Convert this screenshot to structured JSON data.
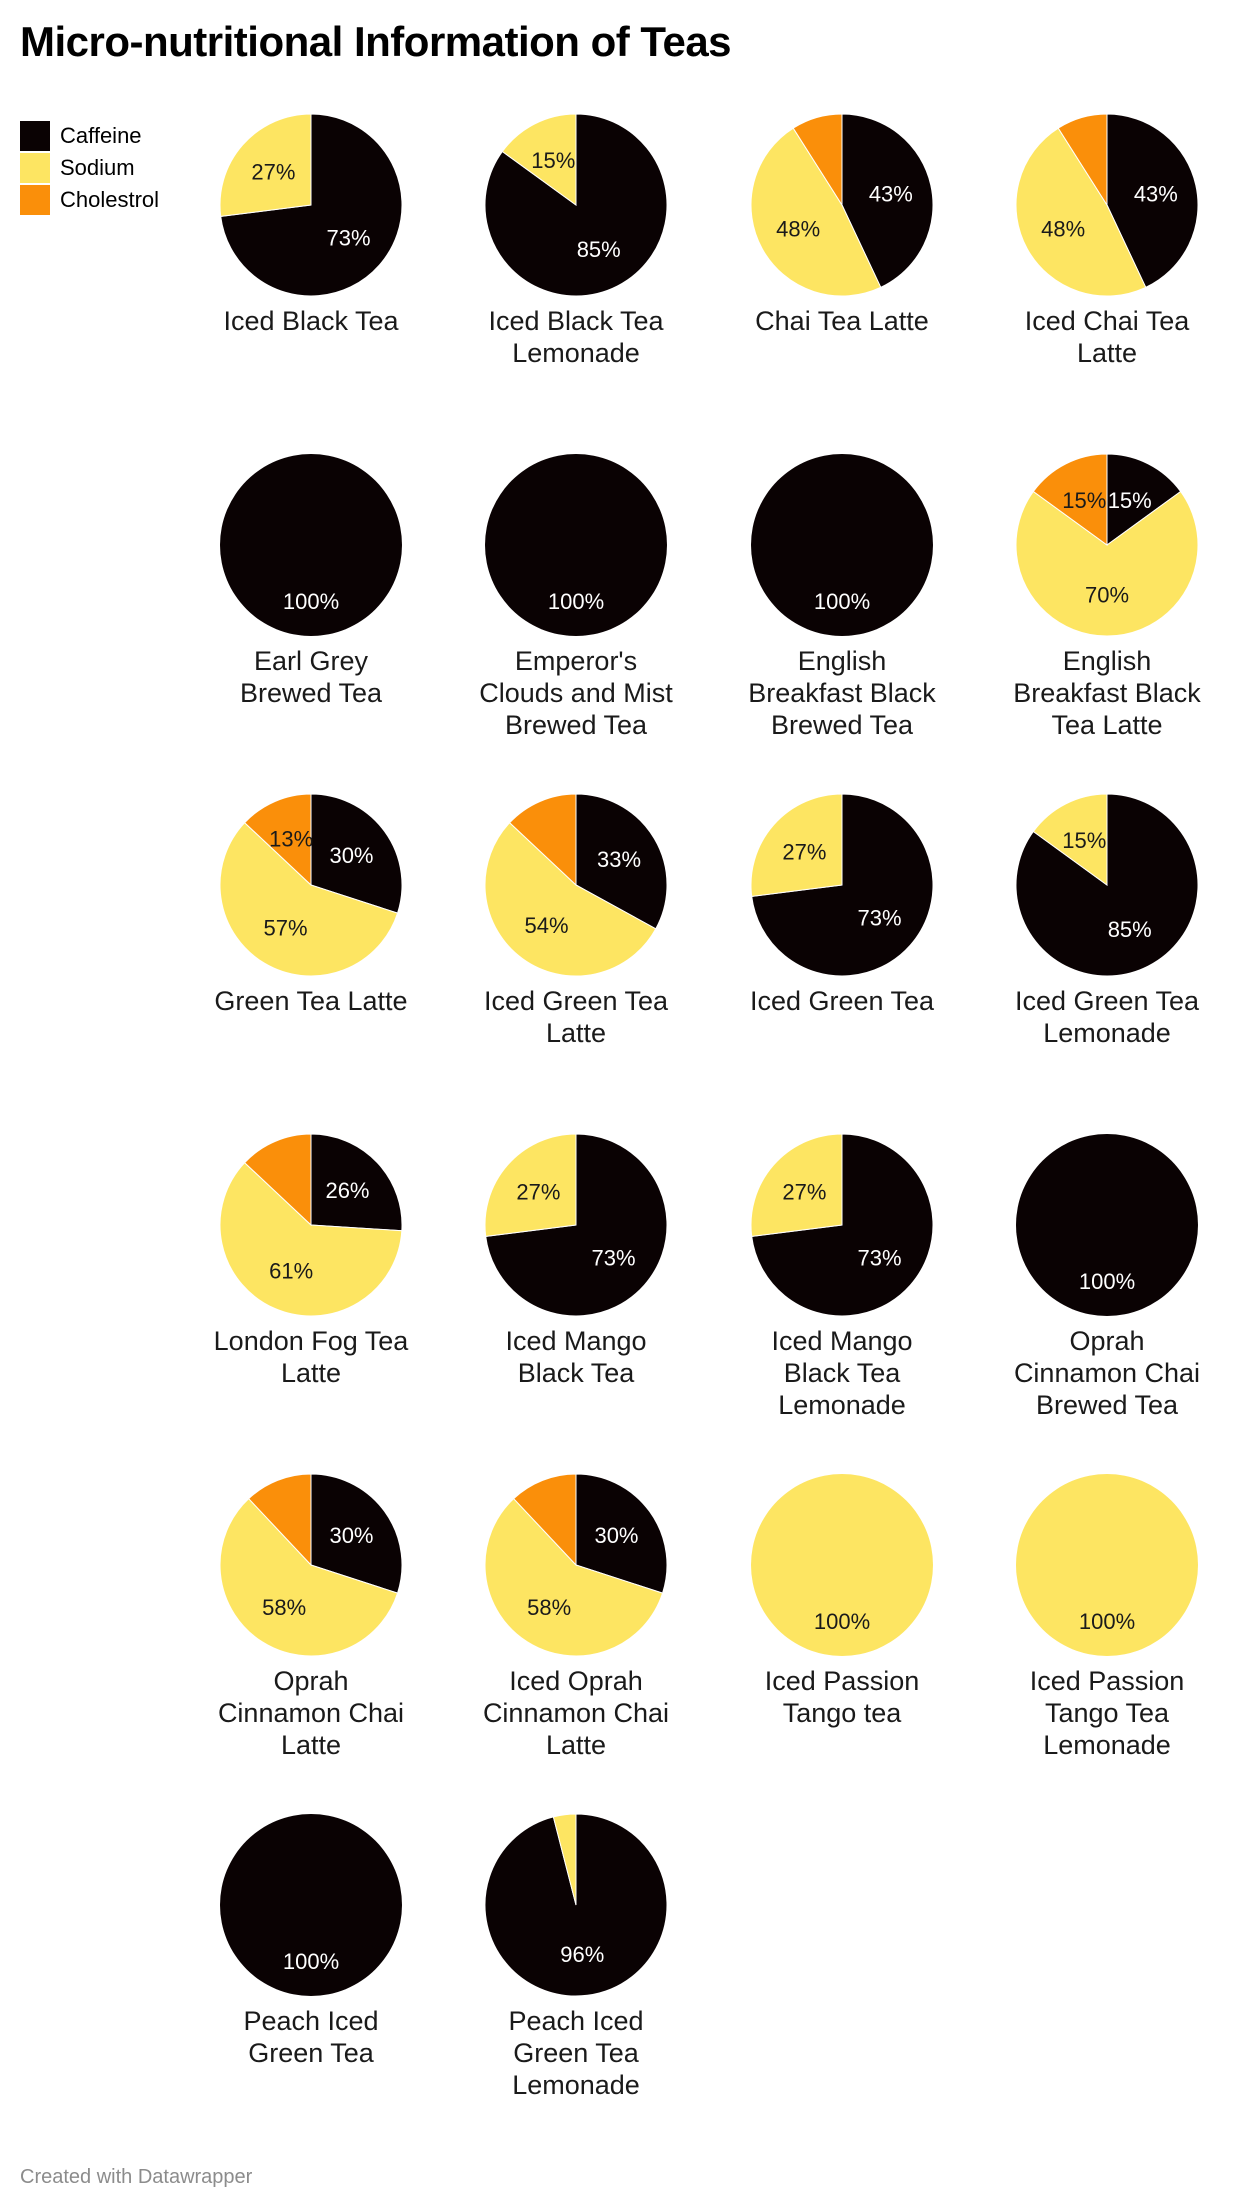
{
  "title": "Micro-nutritional Information of Teas",
  "footer": "Created with Datawrapper",
  "colors": {
    "Caffeine": "#0a0203",
    "Sodium": "#fde562",
    "Cholestrol": "#fa8f0a"
  },
  "legend": [
    "Caffeine",
    "Sodium",
    "Cholestrol"
  ],
  "chart_data": {
    "type": "pie",
    "series_order": [
      "Caffeine",
      "Sodium",
      "Cholestrol"
    ],
    "legend_position": "top-left",
    "charts": [
      {
        "name": [
          "Iced Black Tea"
        ],
        "values": [
          73,
          27,
          0
        ],
        "labels": [
          "73%",
          "27%",
          ""
        ]
      },
      {
        "name": [
          "Iced Black Tea",
          "Lemonade"
        ],
        "values": [
          85,
          15,
          0
        ],
        "labels": [
          "85%",
          "15%",
          ""
        ]
      },
      {
        "name": [
          "Chai Tea Latte"
        ],
        "values": [
          43,
          48,
          9
        ],
        "labels": [
          "43%",
          "48%",
          ""
        ]
      },
      {
        "name": [
          "Iced Chai Tea",
          "Latte"
        ],
        "values": [
          43,
          48,
          9
        ],
        "labels": [
          "43%",
          "48%",
          ""
        ]
      },
      {
        "name": [
          "Earl Grey",
          "Brewed Tea"
        ],
        "values": [
          100,
          0,
          0
        ],
        "labels": [
          "100%",
          "",
          ""
        ]
      },
      {
        "name": [
          "Emperor's",
          "Clouds and Mist",
          "Brewed Tea"
        ],
        "values": [
          100,
          0,
          0
        ],
        "labels": [
          "100%",
          "",
          ""
        ]
      },
      {
        "name": [
          "English",
          "Breakfast Black",
          "Brewed Tea"
        ],
        "values": [
          100,
          0,
          0
        ],
        "labels": [
          "100%",
          "",
          ""
        ]
      },
      {
        "name": [
          "English",
          "Breakfast Black",
          "Tea Latte"
        ],
        "values": [
          15,
          70,
          15
        ],
        "labels": [
          "15%",
          "70%",
          "15%"
        ]
      },
      {
        "name": [
          "Green Tea Latte"
        ],
        "values": [
          30,
          57,
          13
        ],
        "labels": [
          "30%",
          "57%",
          "13%"
        ]
      },
      {
        "name": [
          "Iced Green Tea",
          "Latte"
        ],
        "values": [
          33,
          54,
          13
        ],
        "labels": [
          "33%",
          "54%",
          ""
        ]
      },
      {
        "name": [
          "Iced Green Tea"
        ],
        "values": [
          73,
          27,
          0
        ],
        "labels": [
          "73%",
          "27%",
          ""
        ]
      },
      {
        "name": [
          "Iced Green Tea",
          "Lemonade"
        ],
        "values": [
          85,
          15,
          0
        ],
        "labels": [
          "85%",
          "15%",
          ""
        ]
      },
      {
        "name": [
          "London Fog Tea",
          "Latte"
        ],
        "values": [
          26,
          61,
          13
        ],
        "labels": [
          "26%",
          "61%",
          ""
        ]
      },
      {
        "name": [
          "Iced Mango",
          "Black Tea"
        ],
        "values": [
          73,
          27,
          0
        ],
        "labels": [
          "73%",
          "27%",
          ""
        ]
      },
      {
        "name": [
          "Iced Mango",
          "Black Tea",
          "Lemonade"
        ],
        "values": [
          73,
          27,
          0
        ],
        "labels": [
          "73%",
          "27%",
          ""
        ]
      },
      {
        "name": [
          "Oprah",
          "Cinnamon Chai",
          "Brewed Tea"
        ],
        "values": [
          100,
          0,
          0
        ],
        "labels": [
          "100%",
          "",
          ""
        ]
      },
      {
        "name": [
          "Oprah",
          "Cinnamon Chai",
          "Latte"
        ],
        "values": [
          30,
          58,
          12
        ],
        "labels": [
          "30%",
          "58%",
          ""
        ]
      },
      {
        "name": [
          "Iced Oprah",
          "Cinnamon Chai",
          "Latte"
        ],
        "values": [
          30,
          58,
          12
        ],
        "labels": [
          "30%",
          "58%",
          ""
        ]
      },
      {
        "name": [
          "Iced Passion",
          "Tango tea"
        ],
        "values": [
          0,
          100,
          0
        ],
        "labels": [
          "",
          "100%",
          ""
        ]
      },
      {
        "name": [
          "Iced Passion",
          "Tango Tea",
          "Lemonade"
        ],
        "values": [
          0,
          100,
          0
        ],
        "labels": [
          "",
          "100%",
          ""
        ]
      },
      {
        "name": [
          "Peach Iced",
          "Green Tea"
        ],
        "values": [
          100,
          0,
          0
        ],
        "labels": [
          "100%",
          "",
          ""
        ]
      },
      {
        "name": [
          "Peach Iced",
          "Green Tea",
          "Lemonade"
        ],
        "values": [
          96,
          4,
          0
        ],
        "labels": [
          "96%",
          "",
          ""
        ]
      }
    ]
  }
}
